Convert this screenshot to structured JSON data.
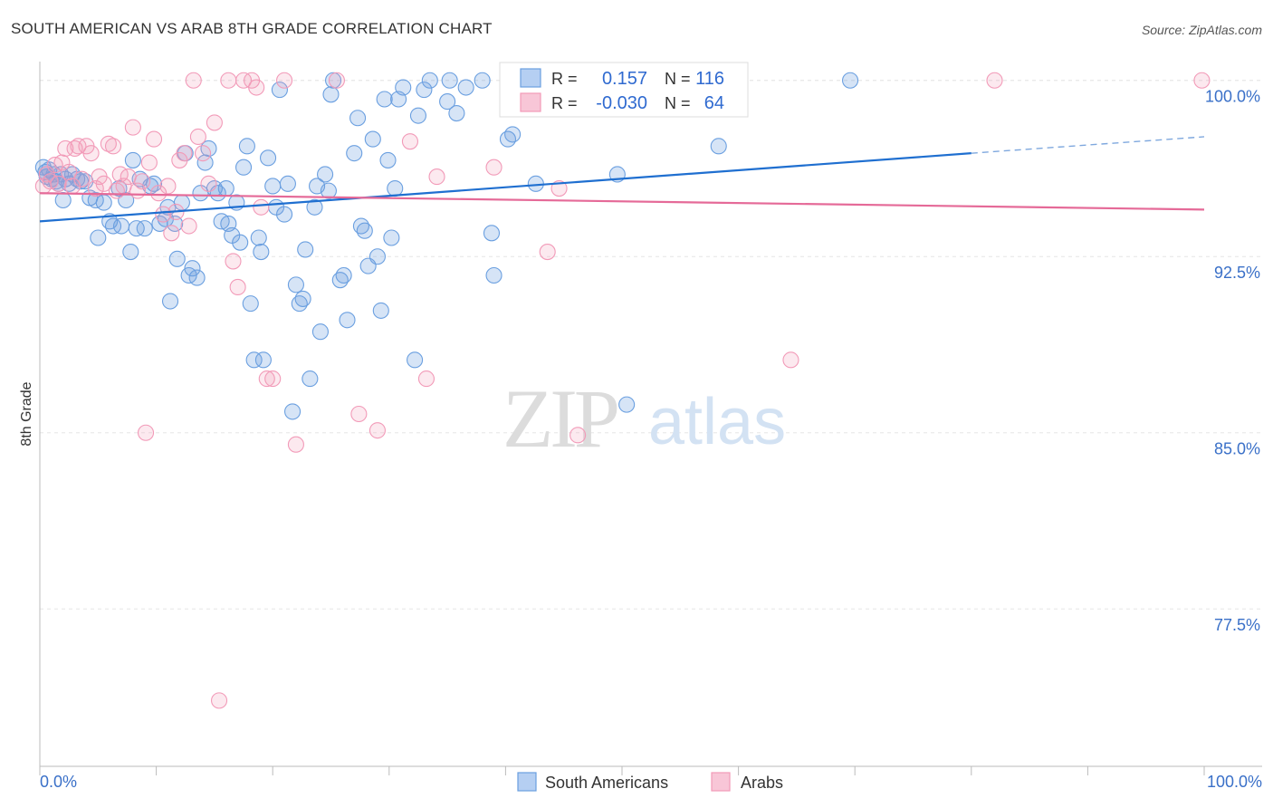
{
  "header": {
    "title": "SOUTH AMERICAN VS ARAB 8TH GRADE CORRELATION CHART",
    "source": "Source: ZipAtlas.com"
  },
  "watermark": {
    "zip": "ZIP",
    "atlas": "atlas"
  },
  "legend_stats": {
    "rows": [
      {
        "r_label": "R =",
        "r_value": "0.157",
        "n_label": "N =",
        "n_value": "116"
      },
      {
        "r_label": "R =",
        "r_value": "-0.030",
        "n_label": "N =",
        "n_value": "64"
      }
    ]
  },
  "chart_data": {
    "type": "scatter",
    "title": "SOUTH AMERICAN VS ARAB 8TH GRADE CORRELATION CHART",
    "xlabel": "",
    "ylabel": "8th Grade",
    "xlim": [
      0,
      100
    ],
    "ylim": [
      70.8,
      100.8
    ],
    "x_tick_labels": [
      "0.0%",
      "100.0%"
    ],
    "y_ticks": [
      77.5,
      85.0,
      92.5,
      100.0
    ],
    "y_tick_labels": [
      "77.5%",
      "85.0%",
      "92.5%",
      "100.0%"
    ],
    "grid": true,
    "legend_position": "bottom-center",
    "colors": {
      "south_americans": "#6a9fe0",
      "arabs": "#f29ab8",
      "blue_line": "#1f6fd0",
      "pink_line": "#e56a98",
      "tick_text": "#3a70c8"
    },
    "series": [
      {
        "name": "South Americans",
        "r": 0.157,
        "n": 116,
        "trend": {
          "x0": 0,
          "y0": 94.0,
          "x1": 80,
          "y1": 96.9,
          "dashed_to_x": 100,
          "dashed_to_y": 97.6
        },
        "points": [
          [
            0.3,
            96.3
          ],
          [
            0.5,
            96.1
          ],
          [
            0.6,
            95.9
          ],
          [
            0.8,
            96.2
          ],
          [
            1.0,
            95.8
          ],
          [
            1.2,
            96.0
          ],
          [
            1.4,
            95.7
          ],
          [
            1.6,
            95.6
          ],
          [
            1.8,
            96.0
          ],
          [
            2.0,
            94.9
          ],
          [
            2.2,
            95.8
          ],
          [
            2.5,
            95.6
          ],
          [
            2.8,
            96.0
          ],
          [
            3.2,
            95.8
          ],
          [
            3.5,
            95.7
          ],
          [
            3.9,
            95.7
          ],
          [
            4.3,
            95.0
          ],
          [
            4.8,
            94.9
          ],
          [
            5.0,
            93.3
          ],
          [
            5.5,
            94.8
          ],
          [
            6.0,
            94.0
          ],
          [
            6.3,
            93.8
          ],
          [
            6.8,
            95.4
          ],
          [
            7.0,
            93.8
          ],
          [
            7.4,
            94.9
          ],
          [
            7.8,
            92.7
          ],
          [
            8.0,
            96.6
          ],
          [
            8.3,
            93.7
          ],
          [
            8.6,
            95.8
          ],
          [
            9.0,
            93.7
          ],
          [
            9.5,
            95.5
          ],
          [
            9.8,
            95.6
          ],
          [
            10.3,
            93.9
          ],
          [
            10.8,
            94.1
          ],
          [
            11.0,
            94.6
          ],
          [
            11.2,
            90.6
          ],
          [
            11.6,
            93.9
          ],
          [
            11.8,
            92.4
          ],
          [
            12.2,
            94.8
          ],
          [
            12.5,
            96.9
          ],
          [
            12.8,
            91.7
          ],
          [
            13.1,
            92.0
          ],
          [
            13.5,
            91.6
          ],
          [
            13.8,
            95.2
          ],
          [
            14.2,
            96.5
          ],
          [
            14.5,
            97.1
          ],
          [
            15.0,
            95.4
          ],
          [
            15.3,
            95.2
          ],
          [
            15.6,
            94.0
          ],
          [
            16.0,
            95.4
          ],
          [
            16.2,
            93.9
          ],
          [
            16.5,
            93.4
          ],
          [
            16.9,
            94.8
          ],
          [
            17.2,
            93.1
          ],
          [
            17.5,
            96.3
          ],
          [
            17.8,
            97.2
          ],
          [
            18.1,
            90.5
          ],
          [
            18.4,
            88.1
          ],
          [
            18.8,
            93.3
          ],
          [
            19.0,
            92.7
          ],
          [
            19.2,
            88.1
          ],
          [
            19.6,
            96.7
          ],
          [
            20.0,
            95.5
          ],
          [
            20.3,
            94.6
          ],
          [
            20.6,
            99.6
          ],
          [
            21.0,
            94.3
          ],
          [
            21.3,
            95.6
          ],
          [
            21.7,
            85.9
          ],
          [
            22.0,
            91.3
          ],
          [
            22.3,
            90.5
          ],
          [
            22.6,
            90.7
          ],
          [
            22.8,
            92.8
          ],
          [
            23.2,
            87.3
          ],
          [
            23.6,
            94.6
          ],
          [
            23.8,
            95.5
          ],
          [
            24.1,
            89.3
          ],
          [
            24.5,
            96.0
          ],
          [
            24.8,
            95.3
          ],
          [
            25.0,
            99.4
          ],
          [
            25.2,
            100.0
          ],
          [
            25.8,
            91.5
          ],
          [
            26.1,
            91.7
          ],
          [
            26.4,
            89.8
          ],
          [
            27.0,
            96.9
          ],
          [
            27.3,
            98.4
          ],
          [
            27.6,
            93.8
          ],
          [
            27.9,
            93.6
          ],
          [
            28.2,
            92.1
          ],
          [
            28.6,
            97.5
          ],
          [
            29.0,
            92.5
          ],
          [
            29.3,
            90.2
          ],
          [
            29.6,
            99.2
          ],
          [
            29.9,
            96.6
          ],
          [
            30.2,
            93.3
          ],
          [
            30.5,
            95.4
          ],
          [
            30.8,
            99.2
          ],
          [
            31.2,
            99.7
          ],
          [
            32.2,
            88.1
          ],
          [
            32.5,
            98.5
          ],
          [
            33.0,
            99.6
          ],
          [
            33.5,
            100.0
          ],
          [
            35.0,
            99.1
          ],
          [
            35.2,
            100.0
          ],
          [
            35.8,
            98.6
          ],
          [
            36.6,
            99.7
          ],
          [
            38.0,
            100.0
          ],
          [
            38.8,
            93.5
          ],
          [
            39.0,
            91.7
          ],
          [
            40.2,
            97.5
          ],
          [
            40.6,
            97.7
          ],
          [
            41.0,
            100.0
          ],
          [
            42.6,
            95.6
          ],
          [
            45.0,
            100.0
          ],
          [
            49.6,
            96.0
          ],
          [
            50.4,
            86.2
          ],
          [
            58.3,
            97.2
          ],
          [
            69.6,
            100.0
          ]
        ]
      },
      {
        "name": "Arabs",
        "r": -0.03,
        "n": 64,
        "trend": {
          "x0": 0,
          "y0": 95.2,
          "x1": 100,
          "y1": 94.5
        },
        "points": [
          [
            0.3,
            95.5
          ],
          [
            0.6,
            96.0
          ],
          [
            0.9,
            95.7
          ],
          [
            1.3,
            96.4
          ],
          [
            1.6,
            95.6
          ],
          [
            1.9,
            96.5
          ],
          [
            2.2,
            97.1
          ],
          [
            2.5,
            96.1
          ],
          [
            2.8,
            95.5
          ],
          [
            3.0,
            97.1
          ],
          [
            3.3,
            97.2
          ],
          [
            3.6,
            95.8
          ],
          [
            4.0,
            97.2
          ],
          [
            4.4,
            96.9
          ],
          [
            4.8,
            95.4
          ],
          [
            5.1,
            95.9
          ],
          [
            5.5,
            95.6
          ],
          [
            5.9,
            97.3
          ],
          [
            6.3,
            97.2
          ],
          [
            6.6,
            95.3
          ],
          [
            6.9,
            96.0
          ],
          [
            7.2,
            95.5
          ],
          [
            7.6,
            95.9
          ],
          [
            8.0,
            98.0
          ],
          [
            8.4,
            95.3
          ],
          [
            8.8,
            95.7
          ],
          [
            9.1,
            85.0
          ],
          [
            9.4,
            96.5
          ],
          [
            9.8,
            97.5
          ],
          [
            10.2,
            95.2
          ],
          [
            10.6,
            94.3
          ],
          [
            11.0,
            95.5
          ],
          [
            11.3,
            93.5
          ],
          [
            11.7,
            94.4
          ],
          [
            12.0,
            96.6
          ],
          [
            12.4,
            96.9
          ],
          [
            12.8,
            93.8
          ],
          [
            13.2,
            100.0
          ],
          [
            13.6,
            97.6
          ],
          [
            14.0,
            96.9
          ],
          [
            14.5,
            95.6
          ],
          [
            15.0,
            98.2
          ],
          [
            15.4,
            73.6
          ],
          [
            16.2,
            100.0
          ],
          [
            16.6,
            92.3
          ],
          [
            17.0,
            91.2
          ],
          [
            17.5,
            100.0
          ],
          [
            18.2,
            100.0
          ],
          [
            18.6,
            99.7
          ],
          [
            19.0,
            94.6
          ],
          [
            19.5,
            87.3
          ],
          [
            20.0,
            87.3
          ],
          [
            21.0,
            100.0
          ],
          [
            22.0,
            84.5
          ],
          [
            25.5,
            100.0
          ],
          [
            27.4,
            85.8
          ],
          [
            29.0,
            85.1
          ],
          [
            31.8,
            97.4
          ],
          [
            33.2,
            87.3
          ],
          [
            34.1,
            95.9
          ],
          [
            39.0,
            96.3
          ],
          [
            43.6,
            92.7
          ],
          [
            44.6,
            95.4
          ],
          [
            46.2,
            84.9
          ],
          [
            47.6,
            100.0
          ],
          [
            64.5,
            88.1
          ],
          [
            82.0,
            100.0
          ],
          [
            99.8,
            100.0
          ]
        ]
      }
    ]
  }
}
